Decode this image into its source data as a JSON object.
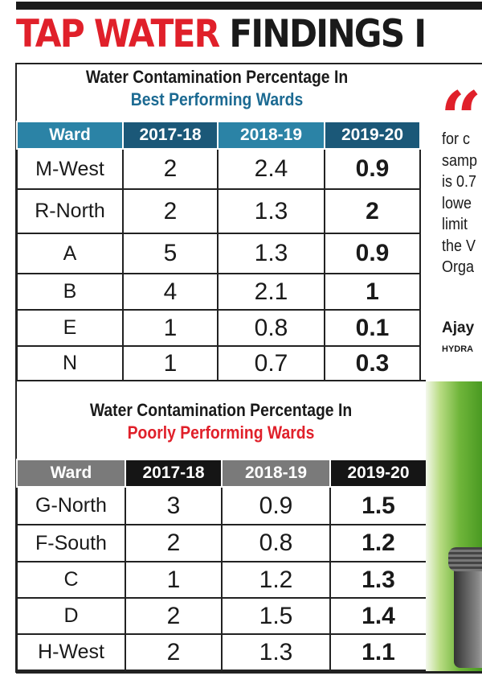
{
  "headline": {
    "red": "TAP WATER",
    "black": "FINDINGS I"
  },
  "quote": {
    "lines": [
      "for c",
      "samp",
      "is 0.7",
      "lowe",
      "limit",
      "the V",
      "Orga"
    ],
    "author": "Ajay",
    "role": "HYDRA"
  },
  "colors": {
    "accent_red": "#e0202a",
    "teal_dark": "#1b5878",
    "teal_light": "#2b83a6",
    "title_blue": "#1c6a92"
  },
  "chart_data": [
    {
      "type": "table",
      "title": "Water Contamination Percentage In",
      "subtitle": "Best Performing Wards",
      "columns": [
        "Ward",
        "2017-18",
        "2018-19",
        "2019-20"
      ],
      "rows": [
        [
          "M-West",
          "2",
          "2.4",
          "0.9"
        ],
        [
          "R-North",
          "2",
          "1.3",
          "2"
        ],
        [
          "A",
          "5",
          "1.3",
          "0.9"
        ],
        [
          "B",
          "4",
          "2.1",
          "1"
        ],
        [
          "E",
          "1",
          "0.8",
          "0.1"
        ],
        [
          "N",
          "1",
          "0.7",
          "0.3"
        ]
      ]
    },
    {
      "type": "table",
      "title": "Water Contamination Percentage In",
      "subtitle": "Poorly Performing Wards",
      "columns": [
        "Ward",
        "2017-18",
        "2018-19",
        "2019-20"
      ],
      "rows": [
        [
          "G-North",
          "3",
          "0.9",
          "1.5"
        ],
        [
          "F-South",
          "2",
          "0.8",
          "1.2"
        ],
        [
          "C",
          "1",
          "1.2",
          "1.3"
        ],
        [
          "D",
          "2",
          "1.5",
          "1.4"
        ],
        [
          "H-West",
          "2",
          "1.3",
          "1.1"
        ]
      ]
    }
  ]
}
